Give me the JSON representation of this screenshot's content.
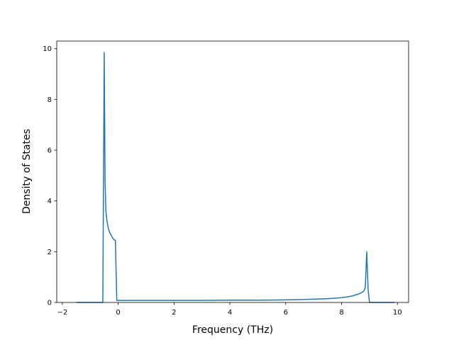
{
  "chart_data": {
    "type": "line",
    "title": "",
    "xlabel": "Frequency (THz)",
    "ylabel": "Density of States",
    "xlim": [
      -2.2,
      10.4
    ],
    "ylim": [
      0,
      10.3
    ],
    "x_ticks": [
      -2,
      0,
      2,
      4,
      6,
      8,
      10
    ],
    "y_ticks": [
      0,
      2,
      4,
      6,
      8,
      10
    ],
    "grid": false,
    "series": [
      {
        "color": "#1f77b4",
        "x": [
          -1.5,
          -0.6,
          -0.55,
          -0.5,
          -0.47,
          -0.44,
          -0.4,
          -0.35,
          -0.3,
          -0.25,
          -0.2,
          -0.15,
          -0.1,
          -0.05,
          0.0,
          0.5,
          1.0,
          2.0,
          3.0,
          4.0,
          5.0,
          6.0,
          6.5,
          7.0,
          7.5,
          7.8,
          8.0,
          8.2,
          8.4,
          8.5,
          8.6,
          8.7,
          8.8,
          8.85,
          8.9,
          8.95,
          9.0,
          9.5,
          9.9
        ],
        "y": [
          0,
          0,
          0,
          9.85,
          4.8,
          3.6,
          3.2,
          2.9,
          2.75,
          2.65,
          2.55,
          2.47,
          2.45,
          0.08,
          0.08,
          0.08,
          0.08,
          0.08,
          0.08,
          0.09,
          0.09,
          0.1,
          0.11,
          0.13,
          0.15,
          0.17,
          0.19,
          0.22,
          0.26,
          0.3,
          0.33,
          0.38,
          0.45,
          0.6,
          2.0,
          0.5,
          0,
          0,
          0
        ]
      }
    ]
  }
}
